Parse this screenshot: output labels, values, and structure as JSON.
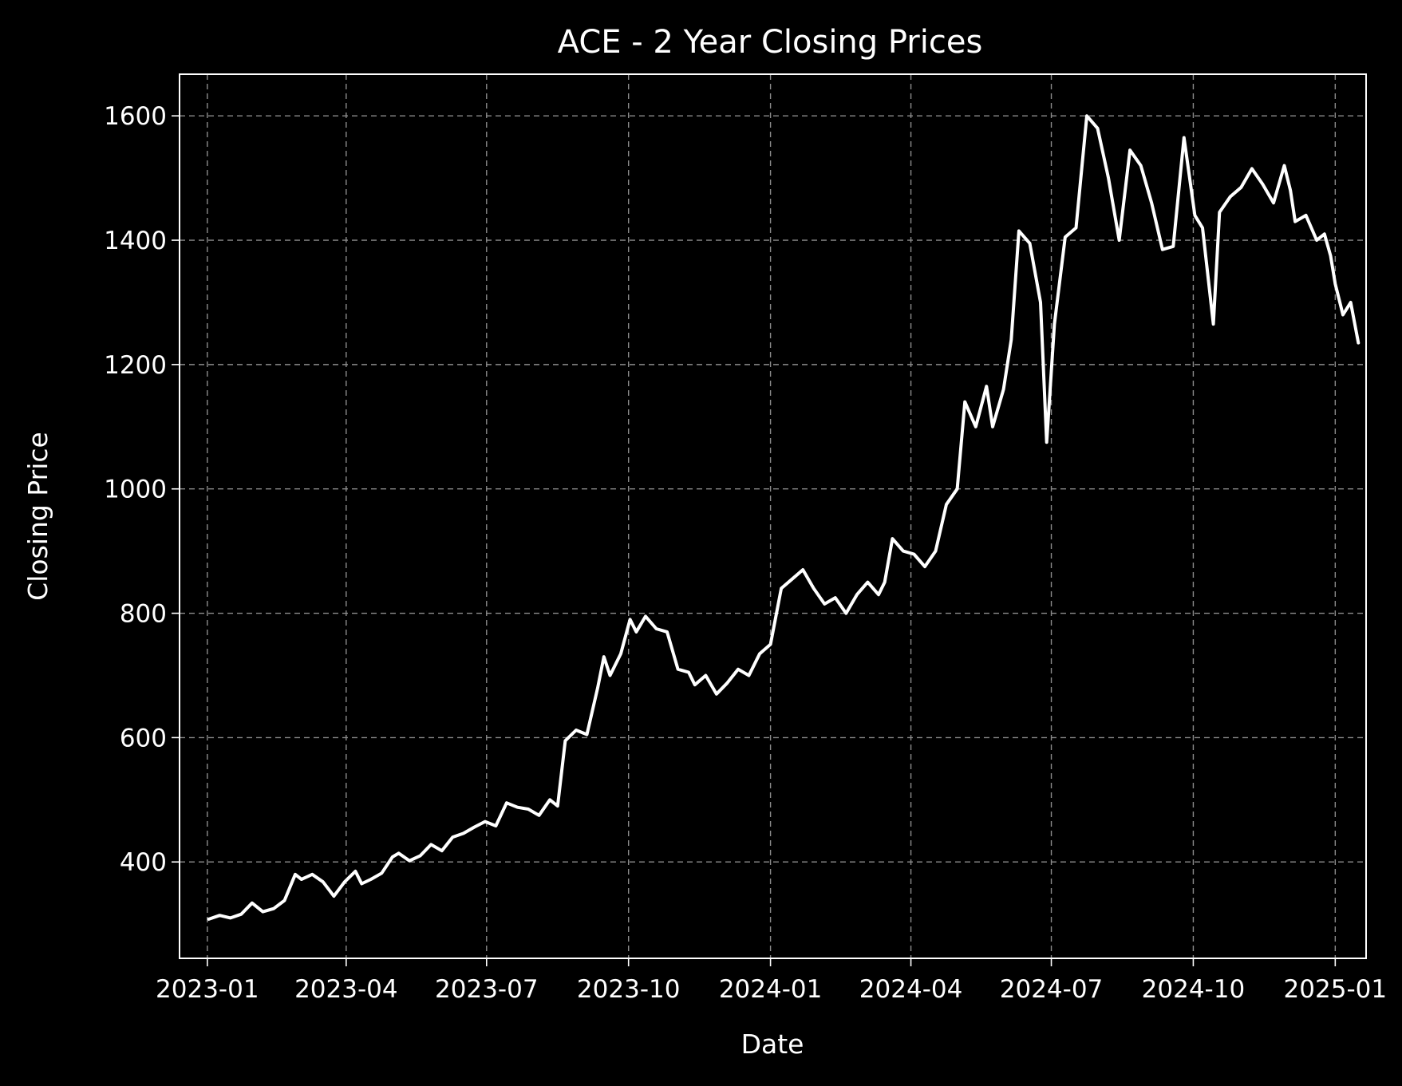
{
  "chart_data": {
    "type": "line",
    "title": "ACE - 2 Year Closing Prices",
    "xlabel": "Date",
    "ylabel": "Closing Price",
    "xlim": [
      "2022-12-14",
      "2025-01-21"
    ],
    "ylim": [
      245,
      1667
    ],
    "grid": true,
    "xticks": [
      {
        "date": "2023-01-01",
        "label": "2023-01"
      },
      {
        "date": "2023-04-01",
        "label": "2023-04"
      },
      {
        "date": "2023-07-01",
        "label": "2023-07"
      },
      {
        "date": "2023-10-01",
        "label": "2023-10"
      },
      {
        "date": "2024-01-01",
        "label": "2024-01"
      },
      {
        "date": "2024-04-01",
        "label": "2024-04"
      },
      {
        "date": "2024-07-01",
        "label": "2024-07"
      },
      {
        "date": "2024-10-01",
        "label": "2024-10"
      },
      {
        "date": "2025-01-01",
        "label": "2025-01"
      }
    ],
    "yticks": [
      400,
      600,
      800,
      1000,
      1200,
      1400,
      1600
    ],
    "series": [
      {
        "color": "#ffffff",
        "points": [
          [
            "2023-01-02",
            308
          ],
          [
            "2023-01-09",
            314
          ],
          [
            "2023-01-16",
            310
          ],
          [
            "2023-01-23",
            316
          ],
          [
            "2023-01-30",
            334
          ],
          [
            "2023-02-06",
            320
          ],
          [
            "2023-02-13",
            325
          ],
          [
            "2023-02-20",
            338
          ],
          [
            "2023-02-27",
            380
          ],
          [
            "2023-03-03",
            372
          ],
          [
            "2023-03-10",
            380
          ],
          [
            "2023-03-17",
            368
          ],
          [
            "2023-03-24",
            345
          ],
          [
            "2023-03-31",
            368
          ],
          [
            "2023-04-07",
            385
          ],
          [
            "2023-04-11",
            365
          ],
          [
            "2023-04-17",
            372
          ],
          [
            "2023-04-24",
            382
          ],
          [
            "2023-05-01",
            408
          ],
          [
            "2023-05-05",
            414
          ],
          [
            "2023-05-12",
            402
          ],
          [
            "2023-05-19",
            410
          ],
          [
            "2023-05-26",
            428
          ],
          [
            "2023-06-02",
            418
          ],
          [
            "2023-06-09",
            440
          ],
          [
            "2023-06-16",
            446
          ],
          [
            "2023-06-23",
            456
          ],
          [
            "2023-06-30",
            465
          ],
          [
            "2023-07-07",
            458
          ],
          [
            "2023-07-14",
            495
          ],
          [
            "2023-07-21",
            488
          ],
          [
            "2023-07-28",
            485
          ],
          [
            "2023-08-04",
            475
          ],
          [
            "2023-08-11",
            500
          ],
          [
            "2023-08-16",
            490
          ],
          [
            "2023-08-21",
            595
          ],
          [
            "2023-08-28",
            612
          ],
          [
            "2023-09-04",
            605
          ],
          [
            "2023-09-11",
            680
          ],
          [
            "2023-09-15",
            730
          ],
          [
            "2023-09-19",
            700
          ],
          [
            "2023-09-26",
            735
          ],
          [
            "2023-10-02",
            790
          ],
          [
            "2023-10-06",
            770
          ],
          [
            "2023-10-12",
            795
          ],
          [
            "2023-10-19",
            775
          ],
          [
            "2023-10-26",
            770
          ],
          [
            "2023-11-02",
            710
          ],
          [
            "2023-11-09",
            705
          ],
          [
            "2023-11-13",
            685
          ],
          [
            "2023-11-20",
            700
          ],
          [
            "2023-11-27",
            670
          ],
          [
            "2023-12-04",
            688
          ],
          [
            "2023-12-11",
            710
          ],
          [
            "2023-12-18",
            700
          ],
          [
            "2023-12-25",
            735
          ],
          [
            "2024-01-01",
            750
          ],
          [
            "2024-01-08",
            840
          ],
          [
            "2024-01-15",
            855
          ],
          [
            "2024-01-22",
            870
          ],
          [
            "2024-01-29",
            840
          ],
          [
            "2024-02-05",
            815
          ],
          [
            "2024-02-12",
            825
          ],
          [
            "2024-02-19",
            800
          ],
          [
            "2024-02-26",
            830
          ],
          [
            "2024-03-04",
            850
          ],
          [
            "2024-03-11",
            830
          ],
          [
            "2024-03-15",
            850
          ],
          [
            "2024-03-20",
            920
          ],
          [
            "2024-03-27",
            900
          ],
          [
            "2024-04-03",
            895
          ],
          [
            "2024-04-10",
            875
          ],
          [
            "2024-04-17",
            900
          ],
          [
            "2024-04-24",
            975
          ],
          [
            "2024-05-01",
            1000
          ],
          [
            "2024-05-06",
            1140
          ],
          [
            "2024-05-13",
            1100
          ],
          [
            "2024-05-20",
            1165
          ],
          [
            "2024-05-24",
            1100
          ],
          [
            "2024-05-31",
            1160
          ],
          [
            "2024-06-05",
            1240
          ],
          [
            "2024-06-10",
            1415
          ],
          [
            "2024-06-17",
            1395
          ],
          [
            "2024-06-24",
            1300
          ],
          [
            "2024-06-28",
            1075
          ],
          [
            "2024-07-03",
            1265
          ],
          [
            "2024-07-10",
            1405
          ],
          [
            "2024-07-17",
            1420
          ],
          [
            "2024-07-24",
            1600
          ],
          [
            "2024-07-31",
            1580
          ],
          [
            "2024-08-07",
            1500
          ],
          [
            "2024-08-14",
            1400
          ],
          [
            "2024-08-21",
            1545
          ],
          [
            "2024-08-28",
            1520
          ],
          [
            "2024-09-04",
            1460
          ],
          [
            "2024-09-11",
            1385
          ],
          [
            "2024-09-18",
            1390
          ],
          [
            "2024-09-25",
            1565
          ],
          [
            "2024-10-02",
            1440
          ],
          [
            "2024-10-07",
            1420
          ],
          [
            "2024-10-14",
            1265
          ],
          [
            "2024-10-18",
            1445
          ],
          [
            "2024-10-25",
            1470
          ],
          [
            "2024-11-01",
            1485
          ],
          [
            "2024-11-08",
            1515
          ],
          [
            "2024-11-15",
            1490
          ],
          [
            "2024-11-22",
            1460
          ],
          [
            "2024-11-29",
            1520
          ],
          [
            "2024-12-03",
            1480
          ],
          [
            "2024-12-06",
            1430
          ],
          [
            "2024-12-13",
            1440
          ],
          [
            "2024-12-20",
            1400
          ],
          [
            "2024-12-25",
            1410
          ],
          [
            "2024-12-29",
            1375
          ],
          [
            "2025-01-01",
            1330
          ],
          [
            "2025-01-06",
            1280
          ],
          [
            "2025-01-11",
            1300
          ],
          [
            "2025-01-16",
            1235
          ]
        ]
      }
    ]
  }
}
